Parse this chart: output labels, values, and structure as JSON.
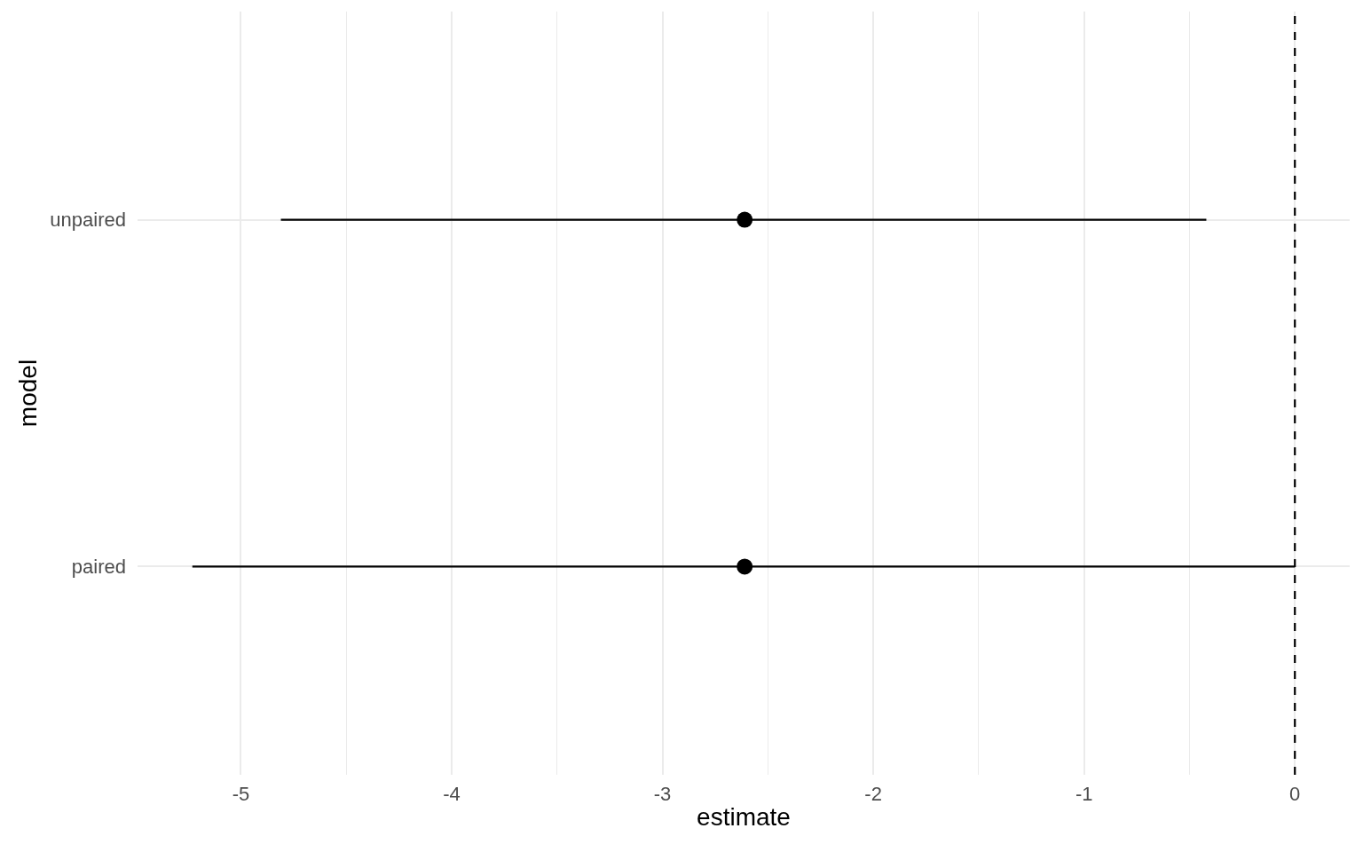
{
  "chart_data": {
    "type": "scatter",
    "orientation": "horizontal",
    "xlabel": "estimate",
    "ylabel": "model",
    "categories": [
      "unpaired",
      "paired"
    ],
    "series": [
      {
        "color": "#000000",
        "values": [
          -2.61,
          -2.61
        ],
        "errors": [
          [
            -4.81,
            -0.42
          ],
          [
            -5.23,
            0
          ]
        ]
      }
    ],
    "marker": "circle",
    "xlim": [
      -5.49,
      0.26
    ],
    "xticks": [
      -5,
      {
        "value": -4.5,
        "label": null
      },
      -4,
      {
        "value": -3.5,
        "label": null
      },
      -3,
      {
        "value": -2.5,
        "label": null
      },
      -2,
      {
        "value": -1.5,
        "label": null
      },
      -1,
      {
        "value": -0.5,
        "label": null
      },
      0
    ],
    "ref_lines": [
      {
        "axis": "x",
        "value": 0,
        "label": null,
        "color": "#000000",
        "line_style": "dashed"
      }
    ],
    "grid": true
  }
}
